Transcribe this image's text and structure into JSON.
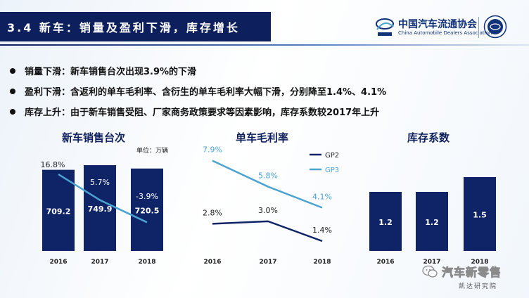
{
  "slide": {
    "title": "3.4 新车：销量及盈利下滑，库存增长",
    "logo_cn": "中国汽车流通协会",
    "logo_en": "China Automobile Dealers Association",
    "bullets": [
      "销量下滑：新车销售台次出现3.9%的下滑",
      "盈利下滑：含返利的单车毛利率、含衍生的单车毛利率大幅下滑，分别降至1.4%、4.1%",
      "库存上升：由于新车销售受阻、厂家商务政策要求等因素影响，库存系数较2017年上升"
    ],
    "watermark_main": "汽车新零售",
    "watermark_sub": "凯达研究院"
  },
  "colors": {
    "navy": "#0d1f5c",
    "bar": "#0f2466",
    "light_line": "#4ba3d1",
    "dark_line": "#0f2466"
  },
  "chart_data": [
    {
      "type": "bar",
      "title": "新车销售台次",
      "unit": "单位：万辆",
      "categories": [
        "2016",
        "2017",
        "2018"
      ],
      "series": [
        {
          "kind": "bar",
          "values": [
            709.2,
            749.9,
            720.5
          ],
          "labels": [
            "709.2",
            "749.9",
            "720.5"
          ]
        },
        {
          "kind": "line",
          "values": [
            16.8,
            5.7,
            -3.9
          ],
          "labels": [
            "16.8%",
            "5.7%",
            "-3.9%"
          ]
        }
      ]
    },
    {
      "type": "line",
      "title": "单车毛利率",
      "categories": [
        "2016",
        "2017",
        "2018"
      ],
      "series": [
        {
          "name": "GP2",
          "values": [
            2.8,
            3.0,
            1.4
          ],
          "labels": [
            "2.8%",
            "3.0%",
            "1.4%"
          ]
        },
        {
          "name": "GP3",
          "values": [
            7.9,
            5.8,
            4.1
          ],
          "labels": [
            "7.9%",
            "5.8%",
            "4.1%"
          ]
        }
      ]
    },
    {
      "type": "bar",
      "title": "库存系数",
      "categories": [
        "2016",
        "2017",
        "2018"
      ],
      "series": [
        {
          "kind": "bar",
          "values": [
            1.2,
            1.2,
            1.5
          ],
          "labels": [
            "1.2",
            "1.2",
            "1.5"
          ]
        }
      ]
    }
  ]
}
